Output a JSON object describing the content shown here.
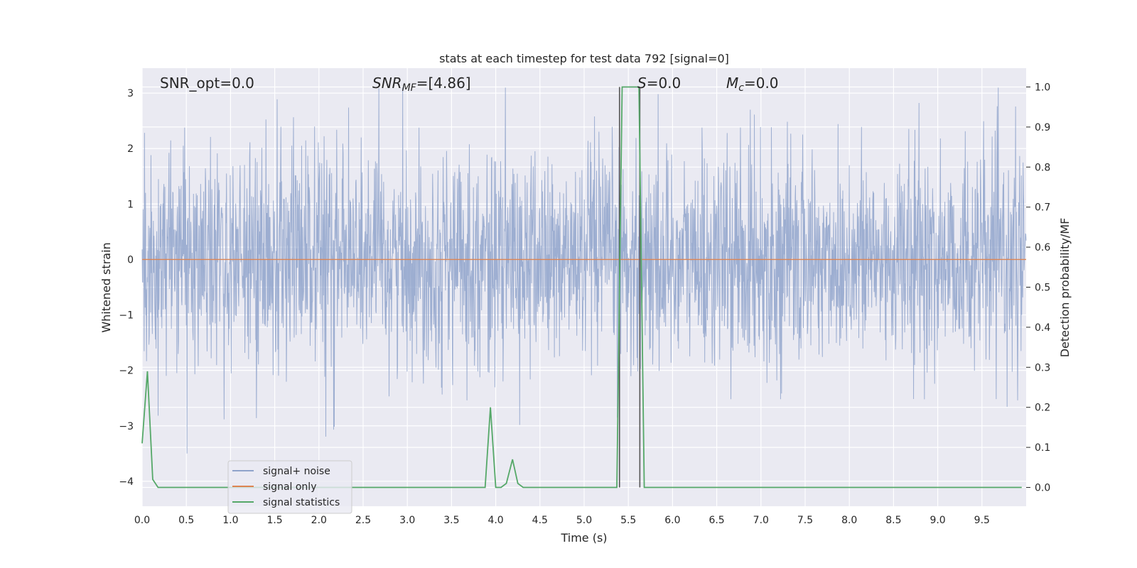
{
  "chart_data": {
    "type": "line",
    "title": "stats at each timestep for test data 792 [signal=0]",
    "xlabel": "Time (s)",
    "ylabel": "Whitened strain",
    "y2label": "Detection probability/MF",
    "xlim": [
      0,
      10
    ],
    "ylim": [
      -4.45,
      3.45
    ],
    "y2lim": [
      -0.047,
      1.047
    ],
    "xticks": [
      "0.0",
      "0.5",
      "1.0",
      "1.5",
      "2.0",
      "2.5",
      "3.0",
      "3.5",
      "4.0",
      "4.5",
      "5.0",
      "5.5",
      "6.0",
      "6.5",
      "7.0",
      "7.5",
      "8.0",
      "8.5",
      "9.0",
      "9.5"
    ],
    "yticks": [
      "3",
      "2",
      "1",
      "0",
      "−1",
      "−2",
      "−3",
      "−4"
    ],
    "y2ticks": [
      "1.0",
      "0.9",
      "0.8",
      "0.7",
      "0.6",
      "0.5",
      "0.4",
      "0.3",
      "0.2",
      "0.1",
      "0.0"
    ],
    "annotations": {
      "snr_opt": "SNR_opt=0.0",
      "snr_mf_sym": "SNR",
      "snr_mf_sub": "MF",
      "snr_mf_val": "=[4.86]",
      "s_sym": "S",
      "s_val": "=0.0",
      "mc_sym": "M",
      "mc_sub": "c",
      "mc_val": "=0.0"
    },
    "legend": {
      "placement": "lower-left",
      "entries": [
        "signal+ noise",
        "signal only",
        "signal statistics"
      ]
    },
    "colors": {
      "noise": "#8fa3cb",
      "signal": "#dd8452",
      "stats": "#55a868",
      "vline": "#555555",
      "grid": "#ffffff",
      "background": "#eaeaf2"
    },
    "series": [
      {
        "name": "signal+ noise",
        "kind": "noisy-strain",
        "envelope_min": -3.5,
        "envelope_max": 3.1,
        "typical_peak": 2.0
      },
      {
        "name": "signal only",
        "x": [
          0,
          10
        ],
        "y": [
          0,
          0
        ]
      },
      {
        "name": "signal statistics",
        "axis": "right",
        "x": [
          0.0,
          0.06,
          0.12,
          0.18,
          0.24,
          3.88,
          3.94,
          4.0,
          4.06,
          4.12,
          4.19,
          4.25,
          4.31,
          5.37,
          5.43,
          5.5,
          5.56,
          5.62,
          5.68,
          9.95
        ],
        "y": [
          0.11,
          0.29,
          0.02,
          0.0,
          0.0,
          0.0,
          0.2,
          0.0,
          0.0,
          0.01,
          0.07,
          0.01,
          0.0,
          0.0,
          1.0,
          1.0,
          1.0,
          1.0,
          0.0,
          0.0
        ]
      }
    ],
    "vlines_x": [
      5.4,
      5.63
    ]
  }
}
